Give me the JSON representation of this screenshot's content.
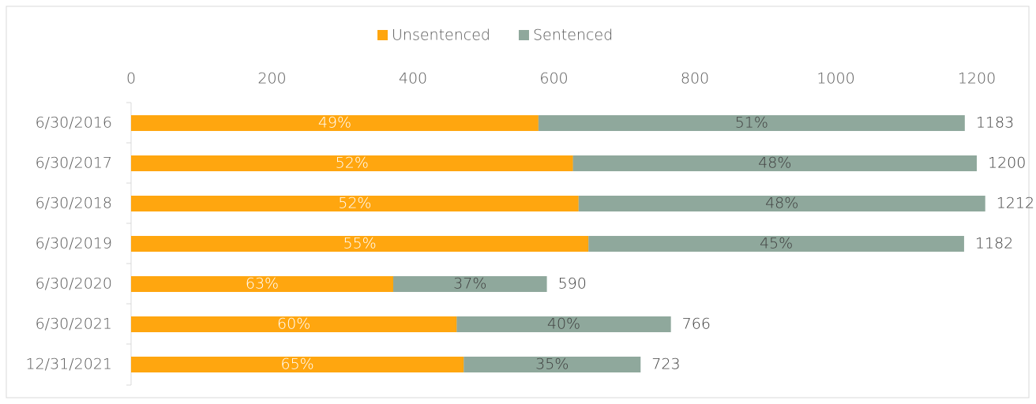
{
  "chart_data": {
    "type": "stacked-bar-horizontal",
    "categories": [
      "6/30/2016",
      "6/30/2017",
      "6/30/2018",
      "6/30/2019",
      "6/30/2020",
      "6/30/2021",
      "12/31/2021"
    ],
    "series": [
      {
        "name": "Unsentenced",
        "color": "#ffa60f",
        "values": [
          578,
          627,
          635,
          649,
          372,
          462,
          472
        ],
        "share_labels": [
          "49%",
          "52%",
          "52%",
          "55%",
          "63%",
          "60%",
          "65%"
        ]
      },
      {
        "name": "Sentenced",
        "color": "#8fa89c",
        "values": [
          605,
          573,
          577,
          533,
          218,
          304,
          251
        ],
        "share_labels": [
          "51%",
          "48%",
          "48%",
          "45%",
          "37%",
          "40%",
          "35%"
        ]
      }
    ],
    "totals": [
      1183,
      1200,
      1212,
      1182,
      590,
      766,
      723
    ],
    "xlim": [
      0,
      1200
    ],
    "xticks": [
      0,
      200,
      400,
      600,
      800,
      1000,
      1200
    ],
    "legend": "top"
  }
}
